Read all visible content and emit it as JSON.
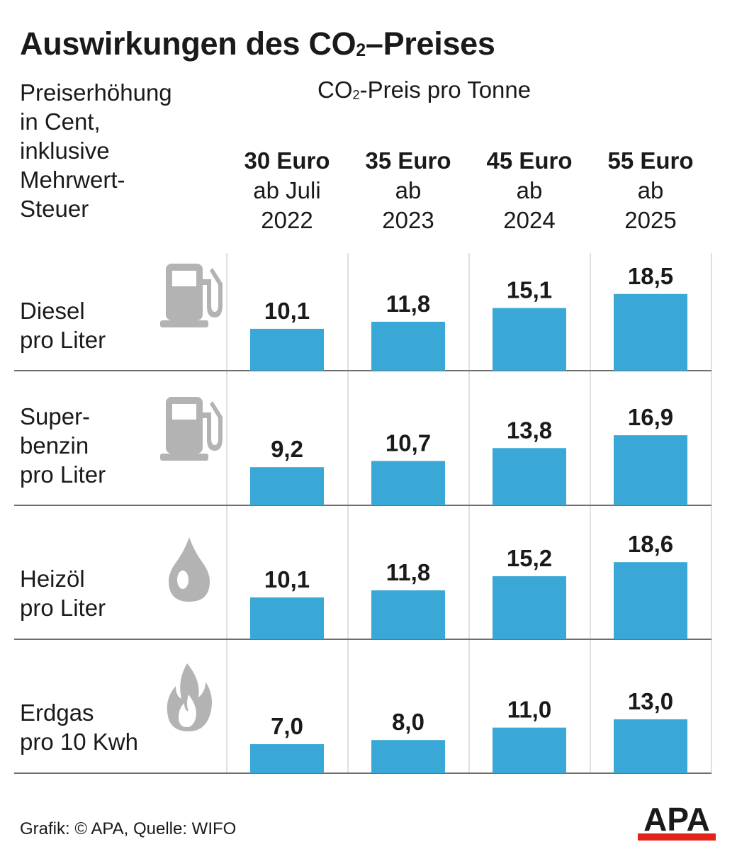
{
  "title": {
    "main": "Auswirkungen des CO",
    "sub": "2",
    "rest": "–Preises"
  },
  "y_description": [
    "Preiserhöhung",
    "in Cent,",
    "inklusive",
    "Mehrwert-",
    "Steuer"
  ],
  "co2_header": {
    "main": "CO",
    "sub": "2",
    "rest": "-Preis pro Tonne"
  },
  "columns": [
    {
      "price": "30 Euro",
      "from": "ab Juli",
      "year": "2022"
    },
    {
      "price": "35 Euro",
      "from": "ab",
      "year": "2023"
    },
    {
      "price": "45 Euro",
      "from": "ab",
      "year": "2024"
    },
    {
      "price": "55 Euro",
      "from": "ab",
      "year": "2025"
    }
  ],
  "rows": [
    {
      "label": [
        "Diesel",
        "pro Liter"
      ],
      "icon": "fuel-pump-icon"
    },
    {
      "label": [
        "Super-",
        "benzin",
        "pro Liter"
      ],
      "icon": "fuel-pump-icon"
    },
    {
      "label": [
        "Heizöl",
        "pro Liter"
      ],
      "icon": "oil-drop-icon"
    },
    {
      "label": [
        "Erdgas",
        "pro 10 Kwh"
      ],
      "icon": "flame-icon"
    }
  ],
  "chart_data": {
    "type": "bar",
    "categories": [
      "30 Euro ab Juli 2022",
      "35 Euro ab 2023",
      "45 Euro ab 2024",
      "55 Euro ab 2025"
    ],
    "series": [
      {
        "name": "Diesel pro Liter",
        "values": [
          10.1,
          11.8,
          15.1,
          18.5
        ],
        "labels": [
          "10,1",
          "11,8",
          "15,1",
          "18,5"
        ]
      },
      {
        "name": "Superbenzin pro Liter",
        "values": [
          9.2,
          10.7,
          13.8,
          16.9
        ],
        "labels": [
          "9,2",
          "10,7",
          "13,8",
          "16,9"
        ]
      },
      {
        "name": "Heizöl pro Liter",
        "values": [
          10.1,
          11.8,
          15.2,
          18.6
        ],
        "labels": [
          "10,1",
          "11,8",
          "15,2",
          "18,6"
        ]
      },
      {
        "name": "Erdgas pro 10 Kwh",
        "values": [
          7.0,
          8.0,
          11.0,
          13.0
        ],
        "labels": [
          "7,0",
          "8,0",
          "11,0",
          "13,0"
        ]
      }
    ],
    "ylabel": "Preiserhöhung in Cent, inklusive Mehrwert-Steuer",
    "grid": false
  },
  "footer": "Grafik: © APA, Quelle: WIFO",
  "logo": "APA",
  "colors": {
    "bar": "#3aa8d6",
    "icon": "#b3b3b3",
    "divider": "#6e6e6e",
    "logo_red": "#e32319"
  }
}
